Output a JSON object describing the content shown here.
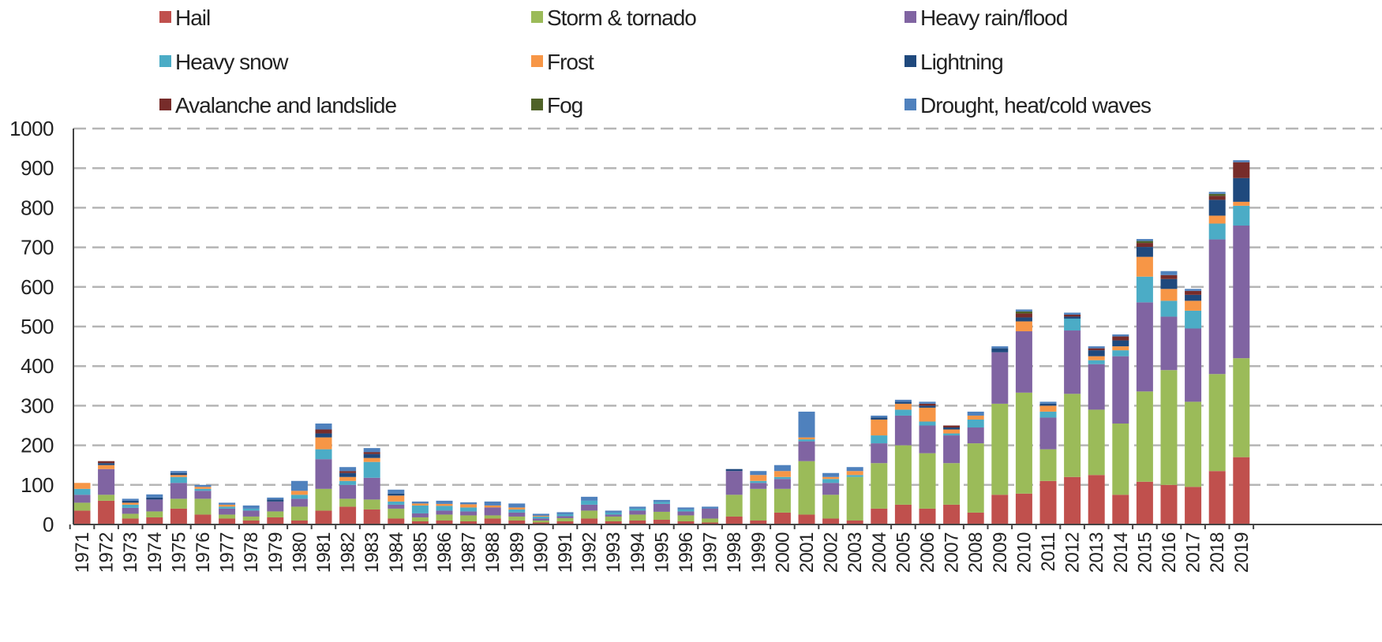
{
  "chart_data": {
    "type": "bar",
    "stacked": true,
    "title": "",
    "xlabel": "",
    "ylabel": "",
    "ylim": [
      0,
      1000
    ],
    "yticks": [
      0,
      100,
      200,
      300,
      400,
      500,
      600,
      700,
      800,
      900,
      1000
    ],
    "grid": true,
    "legend_position": "top",
    "categories": [
      "1971",
      "1972",
      "1973",
      "1974",
      "1975",
      "1976",
      "1977",
      "1978",
      "1979",
      "1980",
      "1981",
      "1982",
      "1983",
      "1984",
      "1985",
      "1986",
      "1987",
      "1988",
      "1989",
      "1990",
      "1991",
      "1992",
      "1993",
      "1994",
      "1995",
      "1996",
      "1997",
      "1998",
      "1999",
      "2000",
      "2001",
      "2002",
      "2003",
      "2004",
      "2005",
      "2006",
      "2007",
      "2008",
      "2009",
      "2010",
      "2011",
      "2012",
      "2013",
      "2014",
      "2015",
      "2016",
      "2017",
      "2018",
      "2019"
    ],
    "series": [
      {
        "name": "Hail",
        "color": "#c0504d",
        "values": [
          35,
          60,
          15,
          18,
          40,
          25,
          15,
          10,
          18,
          10,
          35,
          45,
          38,
          15,
          8,
          10,
          8,
          15,
          10,
          5,
          8,
          15,
          8,
          10,
          12,
          8,
          5,
          20,
          10,
          30,
          25,
          15,
          10,
          40,
          50,
          40,
          50,
          30,
          75,
          78,
          110,
          120,
          125,
          75,
          108,
          100,
          95,
          135,
          170
        ]
      },
      {
        "name": "Storm & tornado",
        "color": "#9bbb59",
        "values": [
          20,
          15,
          12,
          15,
          25,
          40,
          10,
          10,
          15,
          35,
          55,
          20,
          25,
          25,
          10,
          15,
          15,
          8,
          10,
          5,
          8,
          20,
          12,
          15,
          20,
          15,
          10,
          55,
          80,
          60,
          135,
          60,
          110,
          115,
          150,
          140,
          105,
          175,
          230,
          255,
          80,
          210,
          165,
          180,
          228,
          290,
          215,
          245,
          250
        ]
      },
      {
        "name": "Heavy rain/flood",
        "color": "#8064a2",
        "values": [
          20,
          65,
          15,
          30,
          40,
          20,
          15,
          15,
          25,
          20,
          75,
          35,
          55,
          10,
          10,
          10,
          10,
          20,
          10,
          5,
          5,
          15,
          5,
          10,
          20,
          10,
          25,
          60,
          15,
          25,
          50,
          30,
          0,
          50,
          75,
          70,
          70,
          40,
          130,
          155,
          80,
          160,
          115,
          170,
          225,
          135,
          185,
          340,
          335
        ]
      },
      {
        "name": "Heavy snow",
        "color": "#4bacc6",
        "values": [
          15,
          0,
          8,
          0,
          15,
          5,
          5,
          5,
          0,
          10,
          25,
          10,
          40,
          8,
          20,
          12,
          10,
          0,
          8,
          5,
          5,
          10,
          5,
          5,
          5,
          5,
          0,
          0,
          5,
          5,
          5,
          10,
          5,
          20,
          15,
          10,
          5,
          20,
          0,
          0,
          15,
          30,
          10,
          15,
          65,
          40,
          45,
          40,
          50
        ]
      },
      {
        "name": "Frost",
        "color": "#f79646",
        "values": [
          15,
          10,
          5,
          0,
          5,
          5,
          5,
          0,
          0,
          10,
          30,
          10,
          10,
          15,
          5,
          5,
          8,
          5,
          5,
          2,
          0,
          0,
          0,
          0,
          0,
          0,
          0,
          0,
          15,
          15,
          5,
          5,
          10,
          40,
          15,
          35,
          10,
          10,
          0,
          25,
          15,
          0,
          10,
          10,
          50,
          30,
          25,
          20,
          10
        ]
      },
      {
        "name": "Lightning",
        "color": "#1f497d",
        "values": [
          0,
          5,
          5,
          5,
          5,
          0,
          0,
          0,
          5,
          0,
          10,
          10,
          10,
          5,
          0,
          0,
          0,
          0,
          0,
          0,
          0,
          0,
          0,
          0,
          0,
          0,
          0,
          5,
          0,
          0,
          0,
          0,
          0,
          5,
          5,
          5,
          5,
          0,
          10,
          10,
          5,
          5,
          15,
          15,
          25,
          25,
          15,
          40,
          60
        ]
      },
      {
        "name": "Avalanche and landslide",
        "color": "#772c2a",
        "values": [
          0,
          5,
          0,
          0,
          0,
          0,
          0,
          0,
          0,
          0,
          10,
          5,
          5,
          0,
          0,
          0,
          0,
          0,
          0,
          0,
          0,
          0,
          0,
          0,
          0,
          0,
          0,
          0,
          0,
          0,
          0,
          0,
          0,
          0,
          0,
          5,
          5,
          0,
          0,
          10,
          0,
          5,
          5,
          10,
          10,
          10,
          10,
          10,
          40
        ]
      },
      {
        "name": "Fog",
        "color": "#4f6228",
        "values": [
          0,
          0,
          0,
          0,
          0,
          0,
          0,
          0,
          0,
          0,
          0,
          0,
          0,
          0,
          0,
          0,
          0,
          0,
          0,
          0,
          0,
          0,
          0,
          0,
          0,
          0,
          0,
          0,
          0,
          0,
          0,
          0,
          0,
          0,
          0,
          0,
          0,
          0,
          0,
          5,
          0,
          0,
          0,
          0,
          5,
          0,
          0,
          5,
          0
        ]
      },
      {
        "name": "Drought, heat/cold waves",
        "color": "#4f81bd",
        "values": [
          0,
          0,
          5,
          8,
          5,
          5,
          5,
          8,
          5,
          25,
          15,
          10,
          10,
          10,
          5,
          8,
          5,
          10,
          10,
          5,
          5,
          10,
          5,
          5,
          5,
          5,
          5,
          0,
          10,
          15,
          65,
          10,
          10,
          5,
          5,
          5,
          0,
          10,
          5,
          5,
          5,
          5,
          5,
          5,
          5,
          10,
          5,
          5,
          5
        ]
      }
    ]
  }
}
